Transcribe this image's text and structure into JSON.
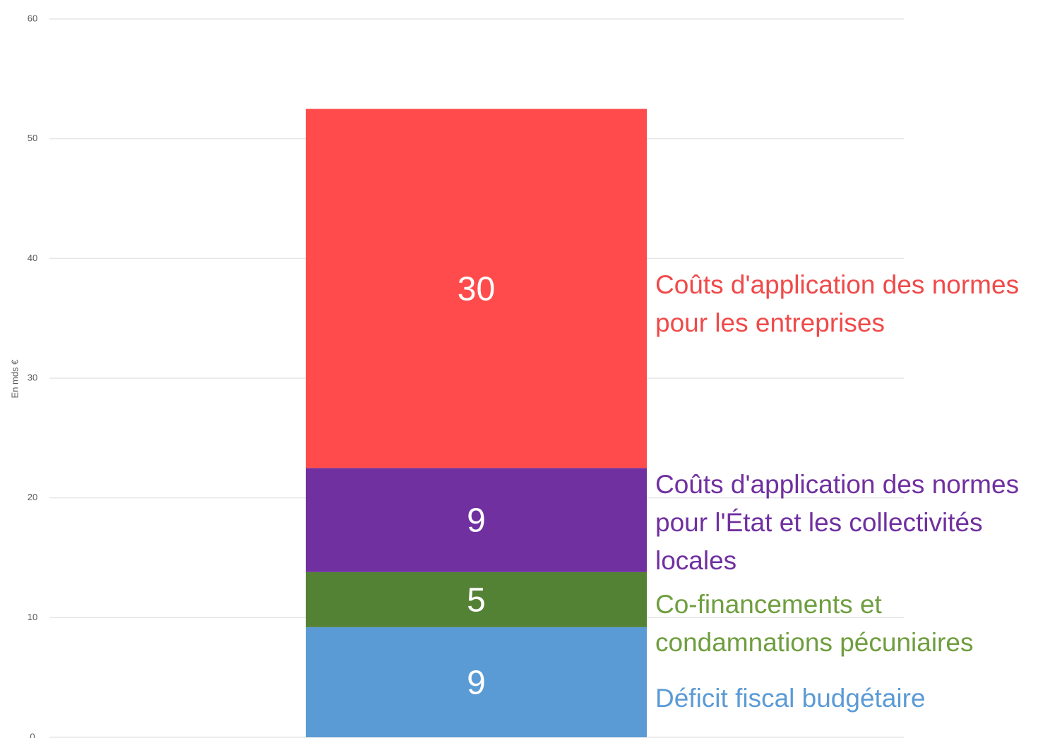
{
  "chart_data": {
    "type": "stacked-bar",
    "y_label": "En mds €",
    "ylim": [
      0,
      60
    ],
    "yticks": [
      0,
      10,
      20,
      30,
      40,
      50,
      60
    ],
    "grid": true,
    "series": [
      {
        "name": "Déficit fiscal budgétaire",
        "color": "#5b9bd5",
        "values": [
          9.2
        ],
        "value_labels": [
          "9"
        ]
      },
      {
        "name": "Co-financements et condamnations pécuniaires",
        "color": "#548235",
        "text_color": "#6f9e3f",
        "values": [
          4.6
        ],
        "value_labels": [
          "5"
        ]
      },
      {
        "name": "Coûts d'application des normes pour l'État et les collectivités locales",
        "color": "#7030a0",
        "values": [
          8.7
        ],
        "value_labels": [
          "9"
        ]
      },
      {
        "name": "Coûts d'application des normes pour les entreprises",
        "color": "#ff4b4b",
        "text_color": "#f04a4a",
        "values": [
          30
        ],
        "value_labels": [
          "30"
        ]
      }
    ]
  }
}
